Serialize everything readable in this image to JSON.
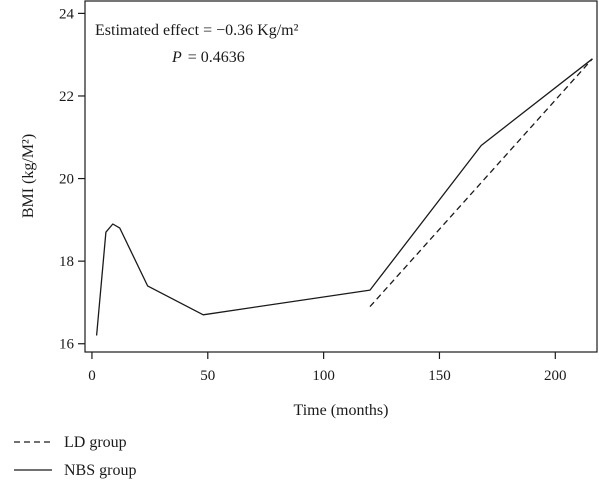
{
  "chart_data": {
    "type": "line",
    "title": "",
    "xlabel": "Time (months)",
    "ylabel": "BMI (kg/M²)",
    "xlim": [
      -3,
      218
    ],
    "ylim": [
      15.8,
      24.3
    ],
    "xticks": [
      0,
      50,
      100,
      150,
      200
    ],
    "yticks": [
      16,
      18,
      20,
      22,
      24
    ],
    "grid": false,
    "legend_position": "bottom-left",
    "annotation": {
      "effect": "Estimated effect = −0.36 Kg/m²",
      "p_label": "P",
      "p_value": "= 0.4636"
    },
    "series": [
      {
        "name": "LD group",
        "style": "dashed",
        "color": "#1a1a1a",
        "x": [
          120,
          216
        ],
        "y": [
          16.9,
          22.9
        ]
      },
      {
        "name": "NBS group",
        "style": "solid",
        "color": "#1a1a1a",
        "x": [
          2,
          6,
          9,
          12,
          24,
          48,
          120,
          168,
          216
        ],
        "y": [
          16.2,
          18.7,
          18.9,
          18.8,
          17.4,
          16.7,
          17.3,
          20.8,
          22.9
        ]
      }
    ]
  }
}
